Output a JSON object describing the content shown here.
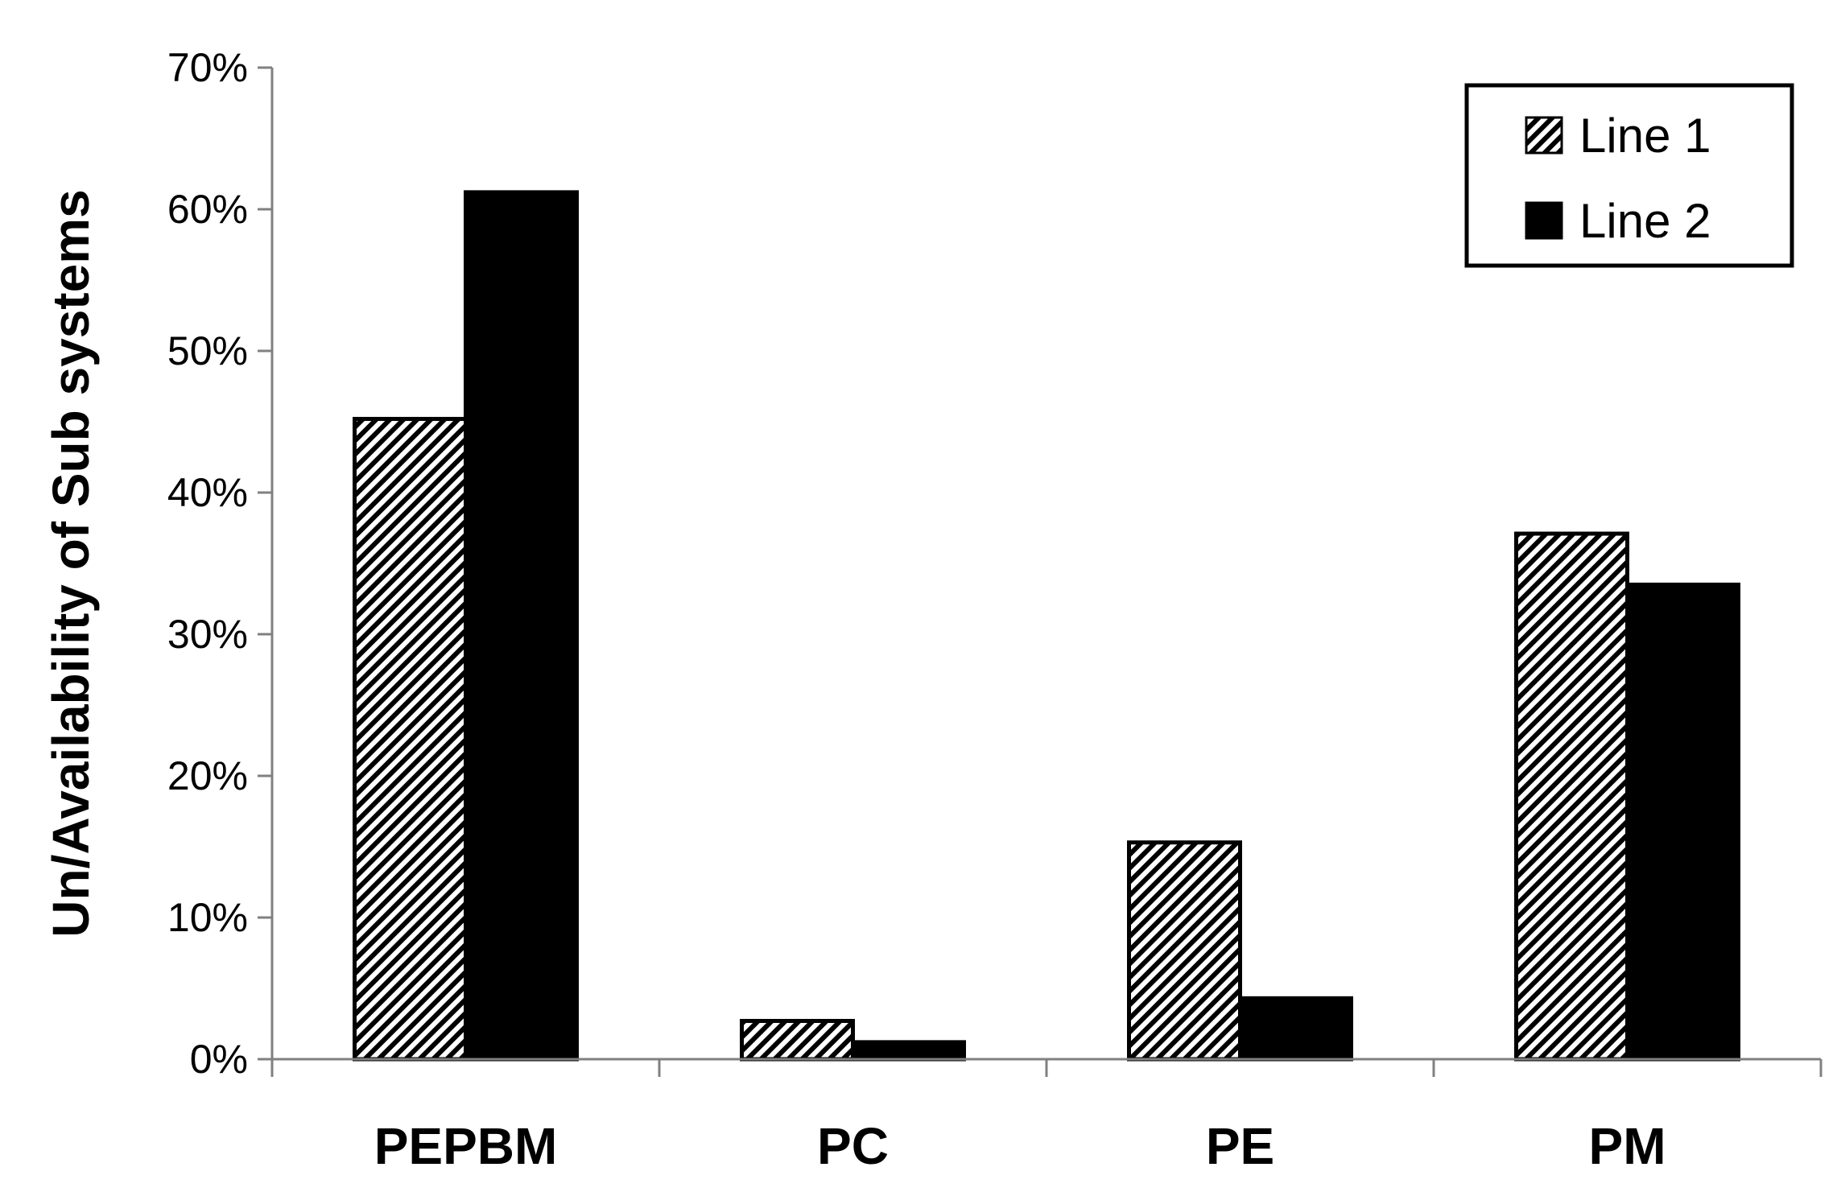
{
  "chart_data": {
    "type": "bar",
    "categories": [
      "PEPBM",
      "PC",
      "PE",
      "PM"
    ],
    "series": [
      {
        "name": "Line 1",
        "values": [
          45.2,
          2.7,
          15.3,
          37.1
        ],
        "fill": "hatch",
        "color": "#000000"
      },
      {
        "name": "Line 2",
        "values": [
          61.2,
          1.2,
          4.3,
          33.5
        ],
        "fill": "solid",
        "color": "#000000"
      }
    ],
    "title": "",
    "xlabel": "",
    "ylabel": "Un/Availability of Sub systems",
    "ylim": [
      0,
      70
    ],
    "yticks": [
      {
        "value": 0,
        "label": "0%"
      },
      {
        "value": 10,
        "label": "10%"
      },
      {
        "value": 20,
        "label": "20%"
      },
      {
        "value": 30,
        "label": "30%"
      },
      {
        "value": 40,
        "label": "40%"
      },
      {
        "value": 50,
        "label": "50%"
      },
      {
        "value": 60,
        "label": "60%"
      },
      {
        "value": 70,
        "label": "70%"
      }
    ],
    "grid": false,
    "legend": {
      "position": "top-right",
      "entries": [
        "Line 1",
        "Line 2"
      ]
    }
  }
}
